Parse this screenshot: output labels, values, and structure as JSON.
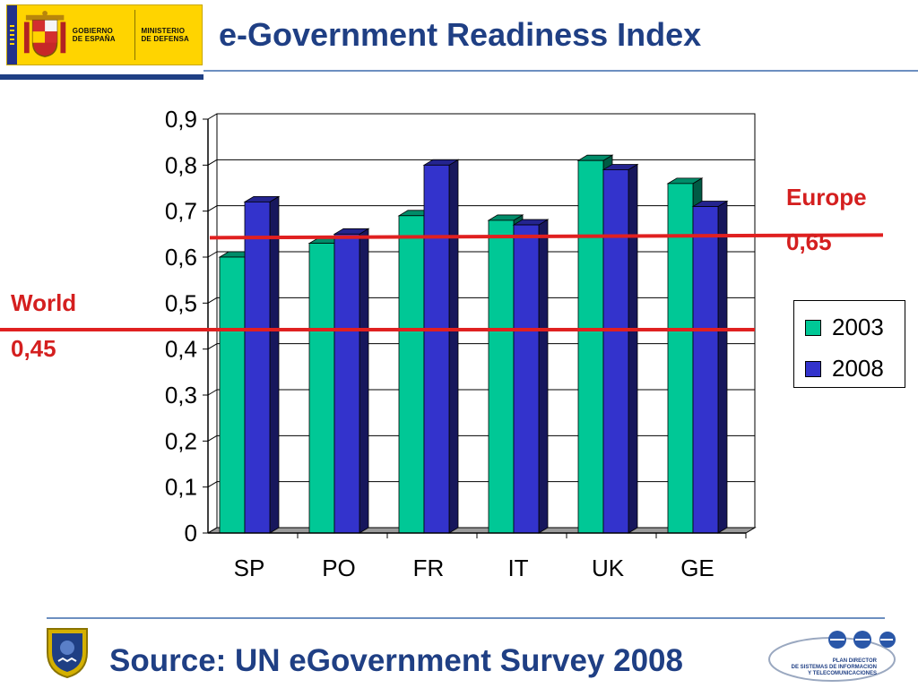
{
  "header": {
    "title": "e-Government Readiness Index",
    "logo_gobierno": "GOBIERNO\nDE ESPAÑA",
    "logo_ministerio": "MINISTERIO\nDE DEFENSA"
  },
  "footer": {
    "source": "Source: UN eGovernment Survey 2008",
    "plan_logo_text": "PLAN DIRECTOR\nDE SISTEMAS DE INFORMACION\nY TELECOMUNICACIONES"
  },
  "chart_data": {
    "type": "bar",
    "title": "e-Government Readiness Index",
    "categories": [
      "SP",
      "PO",
      "FR",
      "IT",
      "UK",
      "GE"
    ],
    "series": [
      {
        "name": "2003",
        "values": [
          0.6,
          0.63,
          0.69,
          0.68,
          0.81,
          0.76
        ],
        "color": "#00c896"
      },
      {
        "name": "2008",
        "values": [
          0.72,
          0.65,
          0.8,
          0.67,
          0.79,
          0.71
        ],
        "color": "#3333cc"
      }
    ],
    "ylim": [
      0,
      0.9
    ],
    "yticks": [
      "0",
      "0,1",
      "0,2",
      "0,3",
      "0,4",
      "0,5",
      "0,6",
      "0,7",
      "0,8",
      "0,9"
    ],
    "ytick_values": [
      0,
      0.1,
      0.2,
      0.3,
      0.4,
      0.5,
      0.6,
      0.7,
      0.8,
      0.9
    ],
    "grid": true,
    "legend": "right",
    "reference_lines": [
      {
        "label": "Europe",
        "value_label": "0,65",
        "value": 0.65,
        "color": "#e02020"
      },
      {
        "label": "World",
        "value_label": "0,45",
        "value": 0.45,
        "color": "#e02020"
      }
    ]
  },
  "colors": {
    "title": "#1f3f84",
    "reference": "#d41f1f",
    "series_2003": "#00c896",
    "series_2008": "#3333cc"
  }
}
